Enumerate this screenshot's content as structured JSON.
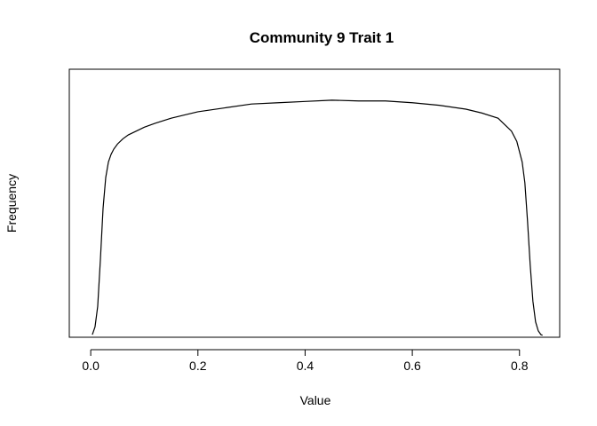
{
  "chart_data": {
    "type": "line",
    "title": "Community 9 Trait 1",
    "xlabel": "Value",
    "ylabel": "Frequency",
    "xlim": [
      -0.04,
      0.875
    ],
    "ylim": [
      0.0,
      1.04
    ],
    "x_ticks": [
      0.0,
      0.2,
      0.4,
      0.6,
      0.8
    ],
    "x_tick_labels": [
      "0.0",
      "0.2",
      "0.4",
      "0.6",
      "0.8"
    ],
    "y_ticks_shown": false,
    "grid": false,
    "legend": "none",
    "line_color": "#000000",
    "series": [
      {
        "x": [
          0.003,
          0.008,
          0.013,
          0.018,
          0.023,
          0.028,
          0.033,
          0.038,
          0.043,
          0.05,
          0.06,
          0.07,
          0.085,
          0.1,
          0.12,
          0.15,
          0.18,
          0.2,
          0.25,
          0.3,
          0.35,
          0.4,
          0.45,
          0.5,
          0.55,
          0.6,
          0.65,
          0.7,
          0.73,
          0.76,
          0.785,
          0.795,
          0.8,
          0.805,
          0.81,
          0.815,
          0.82,
          0.825,
          0.83,
          0.835,
          0.84,
          0.843
        ],
        "y": [
          0.01,
          0.04,
          0.12,
          0.3,
          0.5,
          0.62,
          0.68,
          0.71,
          0.73,
          0.75,
          0.77,
          0.785,
          0.8,
          0.815,
          0.83,
          0.85,
          0.865,
          0.875,
          0.89,
          0.905,
          0.91,
          0.915,
          0.92,
          0.917,
          0.917,
          0.91,
          0.9,
          0.885,
          0.87,
          0.85,
          0.8,
          0.76,
          0.72,
          0.68,
          0.6,
          0.45,
          0.28,
          0.14,
          0.06,
          0.025,
          0.01,
          0.008
        ]
      }
    ]
  }
}
